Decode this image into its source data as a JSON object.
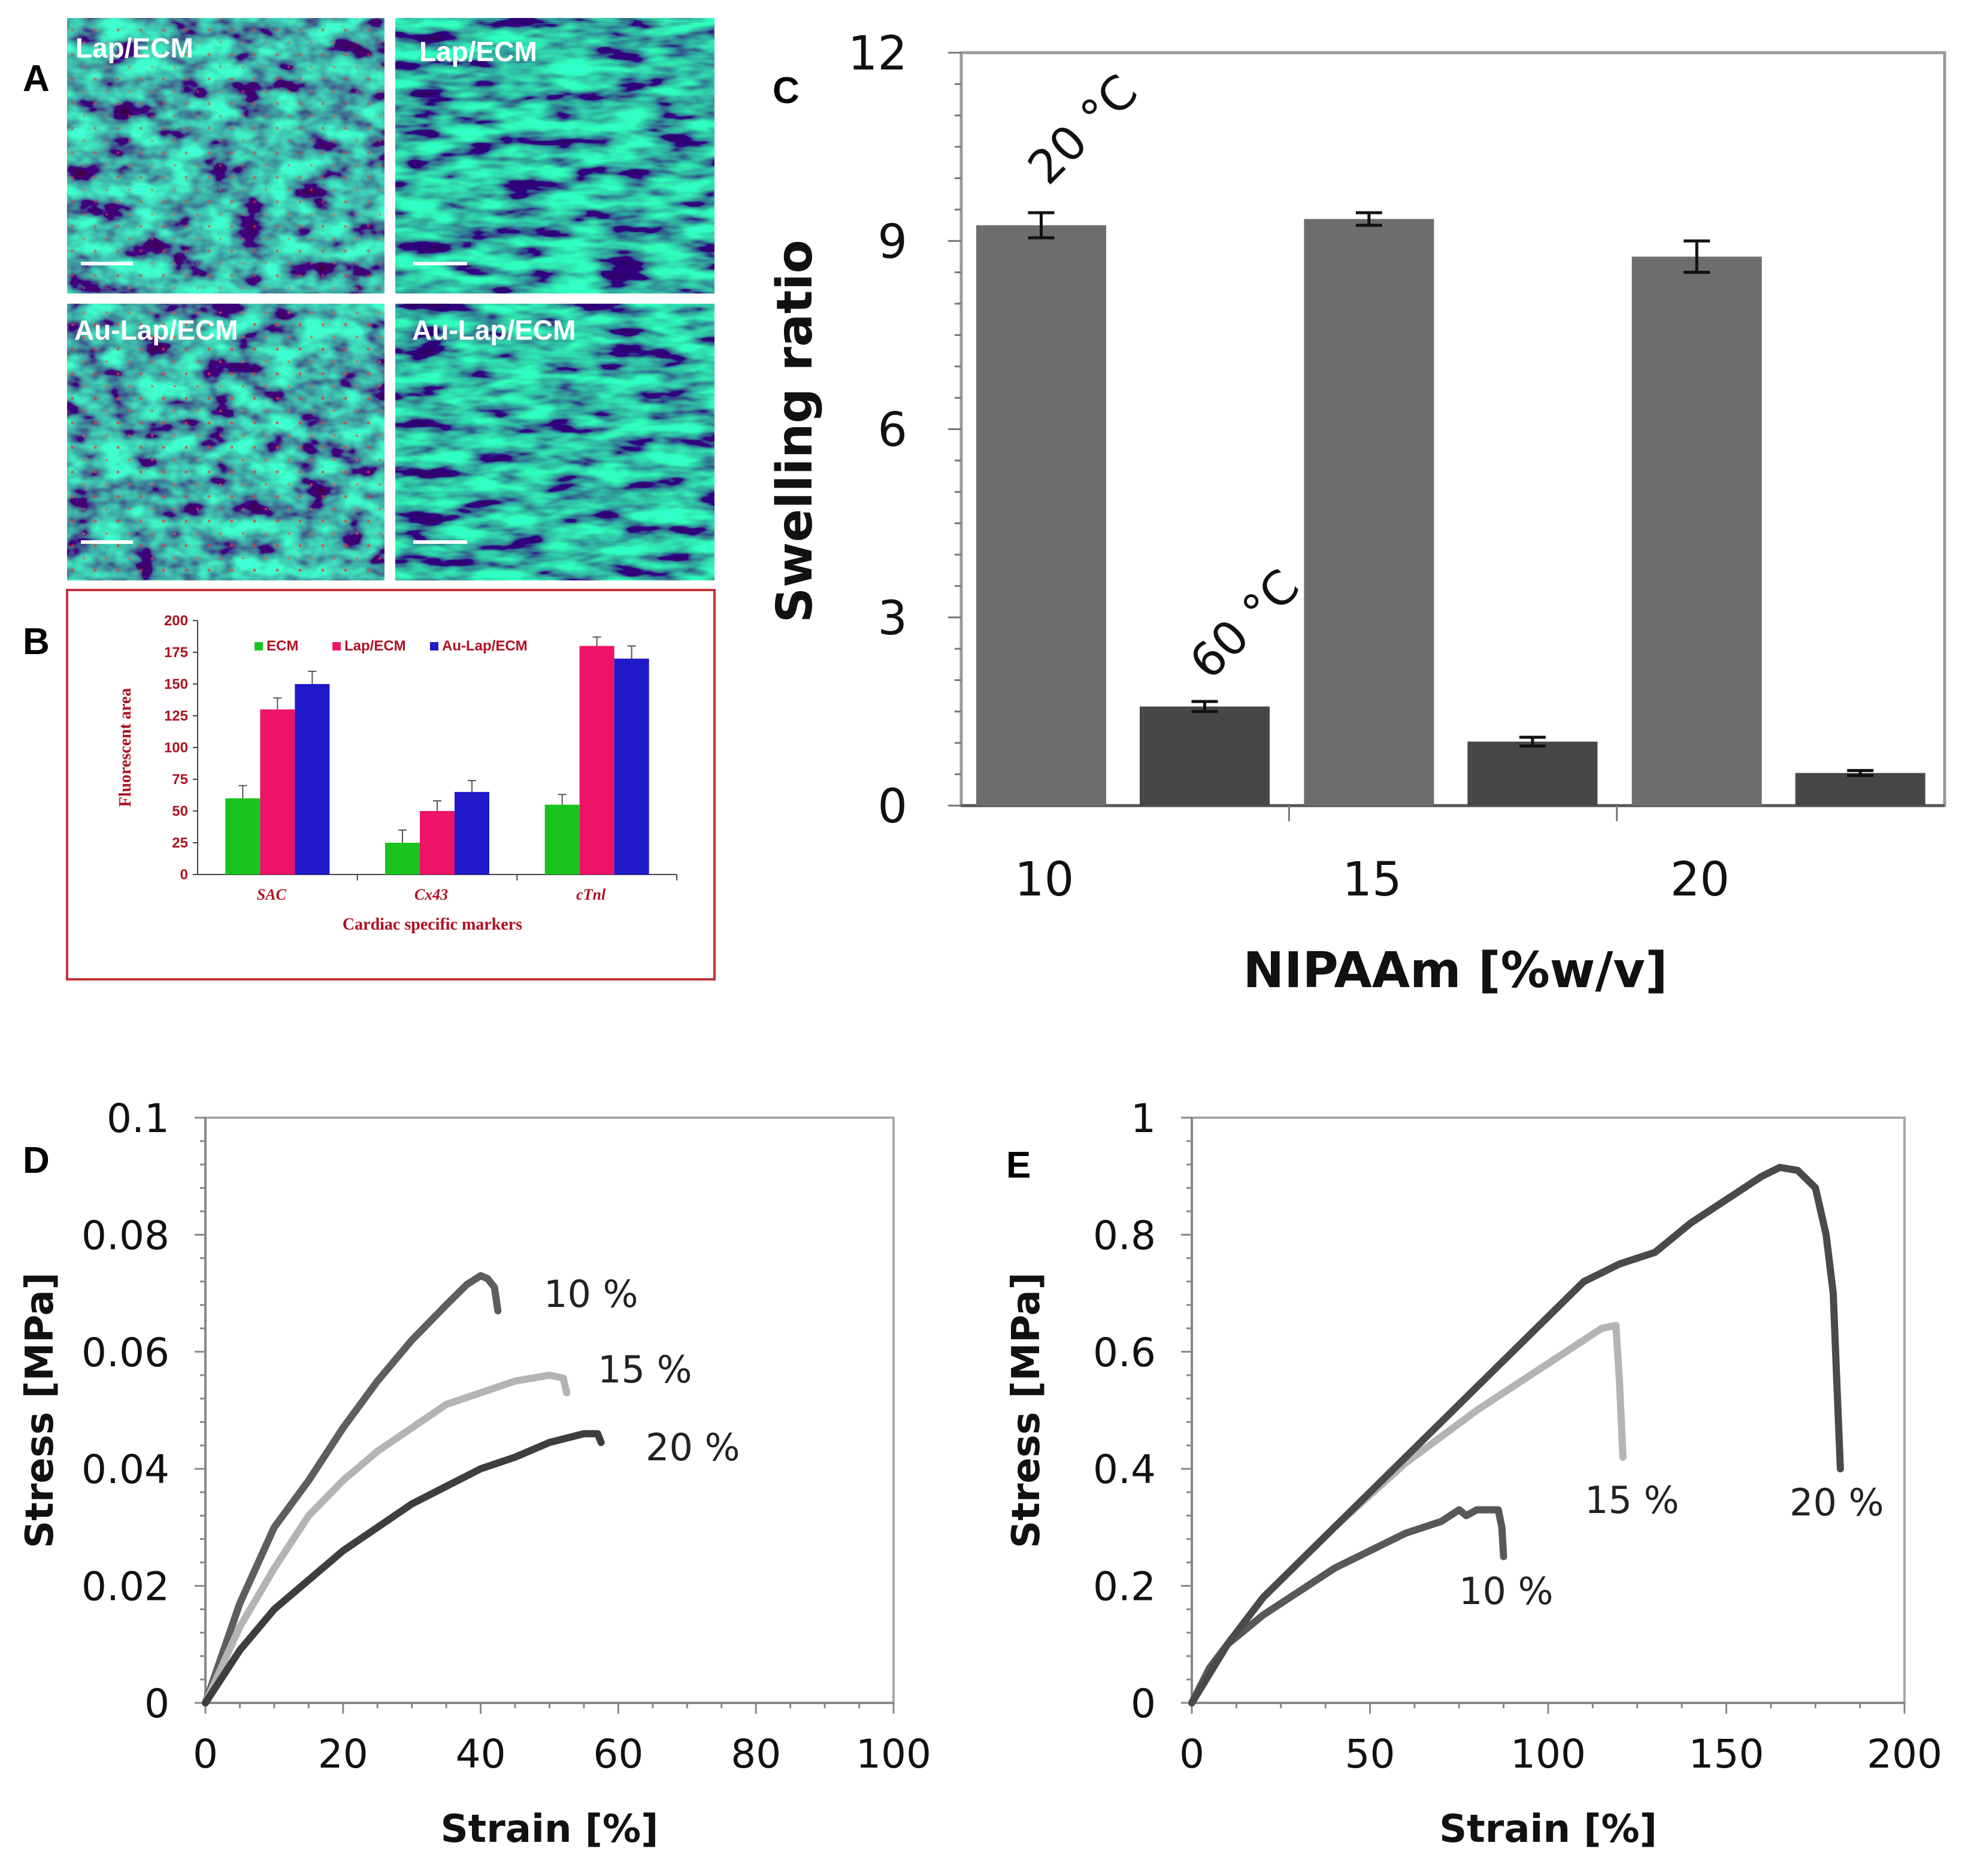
{
  "panel_labels": {
    "A": "A",
    "B": "B",
    "C": "C",
    "D": "D",
    "E": "E"
  },
  "micrographs": [
    {
      "label": "Lap/ECM"
    },
    {
      "label": "Lap/ECM"
    },
    {
      "label": "Au-Lap/ECM"
    },
    {
      "label": "Au-Lap/ECM"
    }
  ],
  "chart_data": [
    {
      "id": "B",
      "type": "bar",
      "title": "",
      "xlabel": "Cardiac specific markers",
      "ylabel": "Fluorescent area",
      "categories": [
        "SAC",
        "Cx43",
        "cTnl"
      ],
      "ylim": [
        0,
        200
      ],
      "yticks": [
        "0",
        "25",
        "50",
        "75",
        "100",
        "125",
        "150",
        "175",
        "200"
      ],
      "series": [
        {
          "name": "ECM",
          "color": "#19c31d",
          "values": [
            60,
            25,
            55
          ],
          "errors": [
            10,
            10,
            8
          ]
        },
        {
          "name": "Lap/ECM",
          "color": "#ee1366",
          "values": [
            130,
            50,
            180
          ],
          "errors": [
            9,
            8,
            7
          ]
        },
        {
          "name": "Au-Lap/ECM",
          "color": "#1f19c9",
          "values": [
            150,
            65,
            170
          ],
          "errors": [
            10,
            9,
            10
          ]
        }
      ]
    },
    {
      "id": "C",
      "type": "bar",
      "title": "",
      "xlabel": "NIPAAm [%w/v]",
      "ylabel": "Swelling ratio",
      "categories": [
        "10",
        "15",
        "20"
      ],
      "ylim": [
        0,
        12
      ],
      "yticks": [
        "0",
        "3",
        "6",
        "9",
        "12"
      ],
      "series": [
        {
          "name": "20 °C",
          "color": "#6d6d6d",
          "values": [
            9.25,
            9.35,
            8.75
          ],
          "errors": [
            0.2,
            0.1,
            0.25
          ]
        },
        {
          "name": "60 °C",
          "color": "#474747",
          "values": [
            1.58,
            1.02,
            0.52
          ],
          "errors": [
            0.08,
            0.07,
            0.04
          ]
        }
      ],
      "annotations": [
        "20 °C",
        "60 °C"
      ]
    },
    {
      "id": "D",
      "type": "line",
      "title": "",
      "xlabel": "Strain [%]",
      "ylabel": "Stress [MPa]",
      "xlim": [
        0,
        100
      ],
      "ylim": [
        0,
        0.1
      ],
      "xticks": [
        "0",
        "20",
        "40",
        "60",
        "80",
        "100"
      ],
      "yticks": [
        "0",
        "0.02",
        "0.04",
        "0.06",
        "0.08",
        "0.1"
      ],
      "series": [
        {
          "name": "10 %",
          "color": "#5e5e5e",
          "x": [
            0,
            5,
            10,
            15,
            20,
            25,
            30,
            35,
            38,
            40,
            41,
            42,
            42.5
          ],
          "y": [
            0,
            0.017,
            0.03,
            0.038,
            0.047,
            0.055,
            0.062,
            0.068,
            0.0715,
            0.073,
            0.0725,
            0.071,
            0.067
          ]
        },
        {
          "name": "15 %",
          "color": "#b4b4b4",
          "x": [
            0,
            5,
            10,
            15,
            20,
            25,
            30,
            35,
            40,
            45,
            50,
            52,
            52.5
          ],
          "y": [
            0,
            0.013,
            0.023,
            0.032,
            0.038,
            0.043,
            0.047,
            0.051,
            0.053,
            0.055,
            0.056,
            0.0555,
            0.053
          ]
        },
        {
          "name": "20 %",
          "color": "#3e3e3e",
          "x": [
            0,
            5,
            10,
            15,
            20,
            25,
            30,
            35,
            40,
            45,
            50,
            55,
            57,
            57.5
          ],
          "y": [
            0,
            0.009,
            0.016,
            0.021,
            0.026,
            0.03,
            0.034,
            0.037,
            0.04,
            0.042,
            0.0445,
            0.046,
            0.046,
            0.0445
          ]
        }
      ]
    },
    {
      "id": "E",
      "type": "line",
      "title": "",
      "xlabel": "Strain [%]",
      "ylabel": "Stress [MPa]",
      "xlim": [
        0,
        200
      ],
      "ylim": [
        0,
        1
      ],
      "xticks": [
        "0",
        "50",
        "100",
        "150",
        "200"
      ],
      "yticks": [
        "0",
        "0.2",
        "0.4",
        "0.6",
        "0.8",
        "1"
      ],
      "series": [
        {
          "name": "10 %",
          "color": "#585858",
          "x": [
            0,
            5,
            10,
            20,
            30,
            40,
            50,
            60,
            70,
            75,
            77,
            80,
            86,
            87,
            87.5
          ],
          "y": [
            0,
            0.06,
            0.1,
            0.15,
            0.19,
            0.23,
            0.26,
            0.29,
            0.31,
            0.33,
            0.32,
            0.33,
            0.33,
            0.3,
            0.25
          ]
        },
        {
          "name": "15 %",
          "color": "#b4b4b4",
          "x": [
            0,
            10,
            20,
            40,
            60,
            80,
            100,
            110,
            115,
            119,
            120,
            121
          ],
          "y": [
            0,
            0.1,
            0.18,
            0.3,
            0.41,
            0.5,
            0.58,
            0.62,
            0.64,
            0.645,
            0.55,
            0.42
          ]
        },
        {
          "name": "20 %",
          "color": "#4a4a4a",
          "x": [
            0,
            10,
            20,
            40,
            60,
            80,
            100,
            110,
            120,
            130,
            140,
            150,
            160,
            165,
            170,
            175,
            178,
            180,
            181,
            182
          ],
          "y": [
            0,
            0.1,
            0.18,
            0.3,
            0.42,
            0.54,
            0.66,
            0.72,
            0.75,
            0.77,
            0.82,
            0.86,
            0.9,
            0.915,
            0.91,
            0.88,
            0.8,
            0.7,
            0.55,
            0.4
          ]
        }
      ]
    }
  ]
}
